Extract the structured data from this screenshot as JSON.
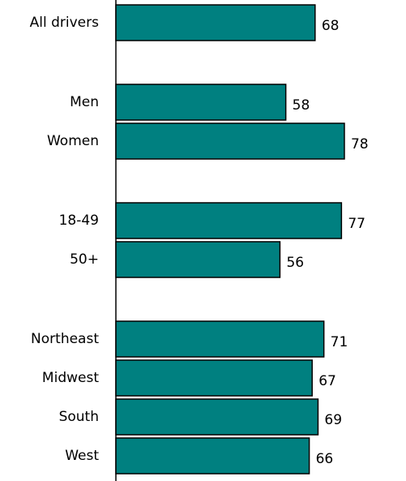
{
  "chart_data": {
    "type": "bar",
    "orientation": "horizontal",
    "categories": [
      "All drivers",
      "Men",
      "Women",
      "18-49",
      "50+",
      "Northeast",
      "Midwest",
      "South",
      "West"
    ],
    "groups": [
      [
        "All drivers"
      ],
      [
        "Men",
        "Women"
      ],
      [
        "18-49",
        "50+"
      ],
      [
        "Northeast",
        "Midwest",
        "South",
        "West"
      ]
    ],
    "values": [
      68,
      58,
      78,
      77,
      56,
      71,
      67,
      69,
      66
    ],
    "data_labels": true,
    "grid": false,
    "legend": "none",
    "bar_color": "#008080"
  }
}
